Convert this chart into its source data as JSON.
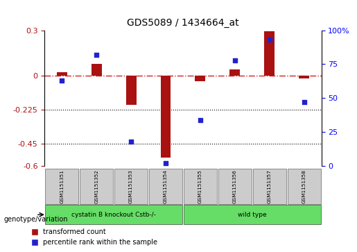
{
  "title": "GDS5089 / 1434664_at",
  "samples": [
    "GSM1151351",
    "GSM1151352",
    "GSM1151353",
    "GSM1151354",
    "GSM1151355",
    "GSM1151356",
    "GSM1151357",
    "GSM1151358"
  ],
  "transformed_count": [
    0.022,
    0.075,
    -0.195,
    -0.545,
    -0.038,
    0.042,
    0.295,
    -0.018
  ],
  "percentile_rank": [
    63,
    82,
    18,
    2,
    34,
    78,
    93,
    47
  ],
  "ylim_left": [
    -0.6,
    0.3
  ],
  "ylim_right": [
    0,
    100
  ],
  "yticks_left": [
    0.3,
    0.0,
    -0.225,
    -0.45,
    -0.6
  ],
  "ytick_labels_left": [
    "0.3",
    "0",
    "-0.225",
    "-0.45",
    "-0.6"
  ],
  "yticks_right": [
    100,
    75,
    50,
    25,
    0
  ],
  "ytick_labels_right": [
    "100%",
    "75",
    "50",
    "25",
    "0"
  ],
  "bar_color": "#aa1111",
  "dot_color": "#2222cc",
  "zero_line_color": "#cc2222",
  "legend_red_label": "transformed count",
  "legend_blue_label": "percentile rank within the sample",
  "genotype_label": "genotype/variation",
  "group1_label": "cystatin B knockout Cstb-/-",
  "group2_label": "wild type",
  "group_color": "#66dd66",
  "sample_box_color": "#cccccc"
}
